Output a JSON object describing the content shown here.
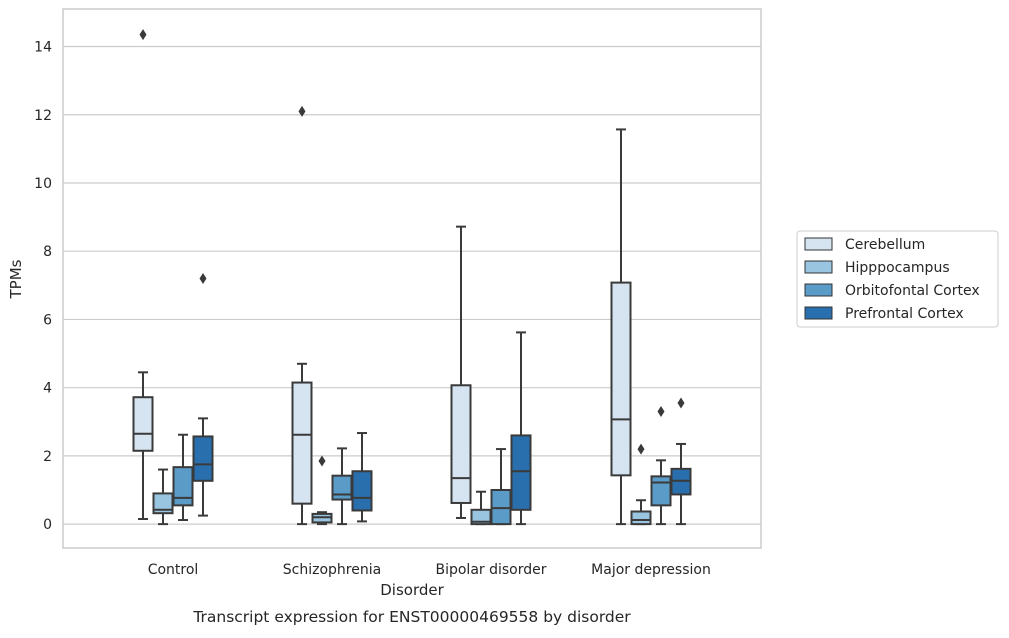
{
  "caption": "Transcript expression for ENST00000469558 by disorder",
  "chart_data": {
    "type": "box",
    "title": "",
    "xlabel": "Disorder",
    "ylabel": "TPMs",
    "ylim": [
      -0.7,
      15.1
    ],
    "yticks": [
      0,
      2,
      4,
      6,
      8,
      10,
      12,
      14
    ],
    "grid": "horizontal",
    "legend_position": "right",
    "categories": [
      "Control",
      "Schizophrenia",
      "Bipolar disorder",
      "Major depression"
    ],
    "series": [
      {
        "name": "Cerebellum",
        "color": "#d6e4f2",
        "boxes": [
          {
            "whisker_low": 0.15,
            "q1": 2.15,
            "median": 2.65,
            "q3": 3.72,
            "whisker_high": 4.45,
            "outliers": [
              14.35
            ]
          },
          {
            "whisker_low": 0.0,
            "q1": 0.6,
            "median": 2.62,
            "q3": 4.15,
            "whisker_high": 4.7,
            "outliers": [
              12.1
            ]
          },
          {
            "whisker_low": 0.18,
            "q1": 0.62,
            "median": 1.35,
            "q3": 4.07,
            "whisker_high": 8.72,
            "outliers": []
          },
          {
            "whisker_low": 0.0,
            "q1": 1.43,
            "median": 3.07,
            "q3": 7.08,
            "whisker_high": 11.57,
            "outliers": []
          }
        ]
      },
      {
        "name": "Hipppocampus",
        "color": "#9ac5e0",
        "boxes": [
          {
            "whisker_low": 0.0,
            "q1": 0.32,
            "median": 0.42,
            "q3": 0.9,
            "whisker_high": 1.6,
            "outliers": []
          },
          {
            "whisker_low": 0.0,
            "q1": 0.05,
            "median": 0.2,
            "q3": 0.3,
            "whisker_high": 0.35,
            "outliers": [
              1.85
            ]
          },
          {
            "whisker_low": 0.0,
            "q1": 0.0,
            "median": 0.07,
            "q3": 0.42,
            "whisker_high": 0.95,
            "outliers": []
          },
          {
            "whisker_low": 0.0,
            "q1": 0.0,
            "median": 0.12,
            "q3": 0.37,
            "whisker_high": 0.7,
            "outliers": [
              2.2
            ]
          }
        ]
      },
      {
        "name": "Orbitofontal Cortex",
        "color": "#5a9bc8",
        "boxes": [
          {
            "whisker_low": 0.12,
            "q1": 0.55,
            "median": 0.77,
            "q3": 1.67,
            "whisker_high": 2.62,
            "outliers": []
          },
          {
            "whisker_low": 0.0,
            "q1": 0.72,
            "median": 0.87,
            "q3": 1.42,
            "whisker_high": 2.22,
            "outliers": []
          },
          {
            "whisker_low": 0.0,
            "q1": 0.0,
            "median": 0.47,
            "q3": 1.0,
            "whisker_high": 2.2,
            "outliers": []
          },
          {
            "whisker_low": 0.0,
            "q1": 0.55,
            "median": 1.22,
            "q3": 1.4,
            "whisker_high": 1.87,
            "outliers": [
              3.3
            ]
          }
        ]
      },
      {
        "name": "Prefrontal Cortex",
        "color": "#2a6fad",
        "boxes": [
          {
            "whisker_low": 0.25,
            "q1": 1.27,
            "median": 1.75,
            "q3": 2.57,
            "whisker_high": 3.1,
            "outliers": [
              7.2
            ]
          },
          {
            "whisker_low": 0.08,
            "q1": 0.4,
            "median": 0.77,
            "q3": 1.55,
            "whisker_high": 2.67,
            "outliers": []
          },
          {
            "whisker_low": 0.0,
            "q1": 0.42,
            "median": 1.55,
            "q3": 2.6,
            "whisker_high": 5.62,
            "outliers": []
          },
          {
            "whisker_low": 0.0,
            "q1": 0.87,
            "median": 1.27,
            "q3": 1.62,
            "whisker_high": 2.35,
            "outliers": [
              3.55
            ]
          }
        ]
      }
    ]
  }
}
